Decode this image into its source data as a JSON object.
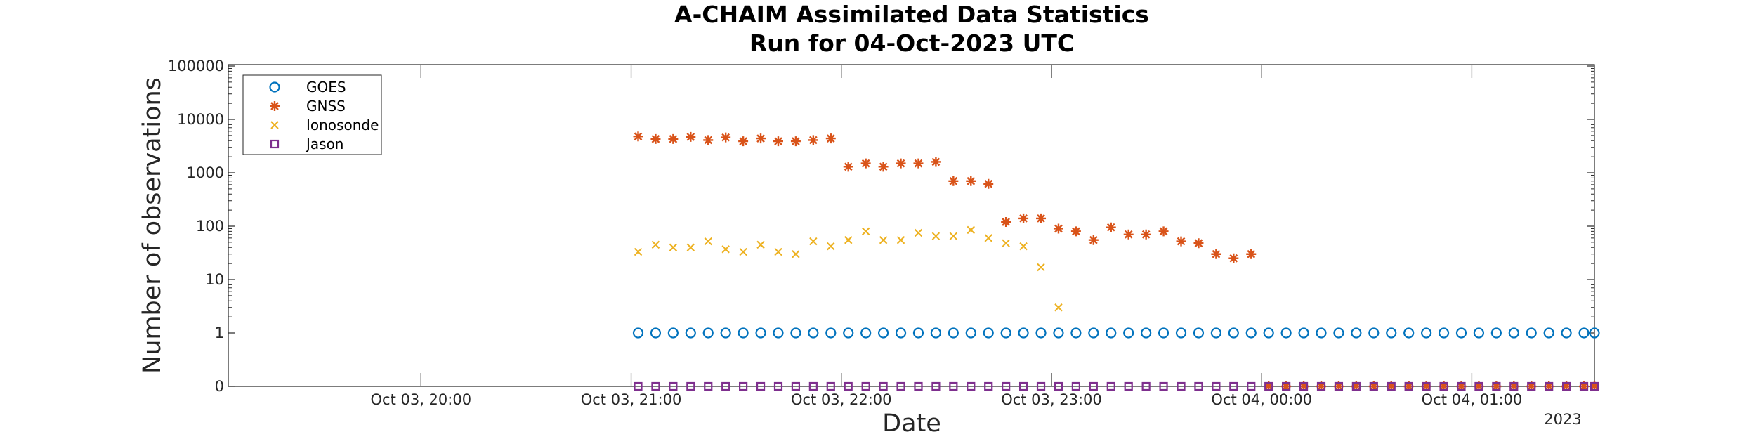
{
  "chart_data": {
    "type": "scatter",
    "title": "A-CHAIM Assimilated Data Statistics",
    "subtitle": "Run for 04-Oct-2023 UTC",
    "xlabel": "Date",
    "ylabel": "Number of observations",
    "x_range_minutes_note": "",
    "x_tick_labels": [
      "Oct 03, 20:00",
      "Oct 03, 21:00",
      "Oct 03, 22:00",
      "Oct 03, 23:00",
      "Oct 04, 00:00",
      "Oct 04, 01:00"
    ],
    "x_year_label": "2023",
    "x_range": [
      "2023-10-03 19:05",
      "2023-10-04 01:35"
    ],
    "y_scale": "log (symlog with 0 at bottom)",
    "y_tick_labels": [
      "0",
      "1",
      "10",
      "100",
      "1000",
      "10000",
      "100000"
    ],
    "ylim": [
      0,
      100000
    ],
    "legend_position": "top-left",
    "grid": false,
    "series": [
      {
        "name": "GOES",
        "marker": "circle",
        "color": "#0072BD",
        "x": [
          "2023-10-03 21:02",
          "2023-10-03 21:07",
          "2023-10-03 21:12",
          "2023-10-03 21:17",
          "2023-10-03 21:22",
          "2023-10-03 21:27",
          "2023-10-03 21:32",
          "2023-10-03 21:37",
          "2023-10-03 21:42",
          "2023-10-03 21:47",
          "2023-10-03 21:52",
          "2023-10-03 21:57",
          "2023-10-03 22:02",
          "2023-10-03 22:07",
          "2023-10-03 22:12",
          "2023-10-03 22:17",
          "2023-10-03 22:22",
          "2023-10-03 22:27",
          "2023-10-03 22:32",
          "2023-10-03 22:37",
          "2023-10-03 22:42",
          "2023-10-03 22:47",
          "2023-10-03 22:52",
          "2023-10-03 22:57",
          "2023-10-03 23:02",
          "2023-10-03 23:07",
          "2023-10-03 23:12",
          "2023-10-03 23:17",
          "2023-10-03 23:22",
          "2023-10-03 23:27",
          "2023-10-03 23:32",
          "2023-10-03 23:37",
          "2023-10-03 23:42",
          "2023-10-03 23:47",
          "2023-10-03 23:52",
          "2023-10-03 23:57",
          "2023-10-04 00:02",
          "2023-10-04 00:07",
          "2023-10-04 00:12",
          "2023-10-04 00:17",
          "2023-10-04 00:22",
          "2023-10-04 00:27",
          "2023-10-04 00:32",
          "2023-10-04 00:37",
          "2023-10-04 00:42",
          "2023-10-04 00:47",
          "2023-10-04 00:52",
          "2023-10-04 00:57",
          "2023-10-04 01:02",
          "2023-10-04 01:07",
          "2023-10-04 01:12",
          "2023-10-04 01:17",
          "2023-10-04 01:22",
          "2023-10-04 01:27",
          "2023-10-04 01:32",
          "2023-10-04 01:35"
        ],
        "values": [
          1,
          1,
          1,
          1,
          1,
          1,
          1,
          1,
          1,
          1,
          1,
          1,
          1,
          1,
          1,
          1,
          1,
          1,
          1,
          1,
          1,
          1,
          1,
          1,
          1,
          1,
          1,
          1,
          1,
          1,
          1,
          1,
          1,
          1,
          1,
          1,
          1,
          1,
          1,
          1,
          1,
          1,
          1,
          1,
          1,
          1,
          1,
          1,
          1,
          1,
          1,
          1,
          1,
          1,
          1,
          1
        ]
      },
      {
        "name": "GNSS",
        "marker": "asterisk",
        "color": "#D95319",
        "x": [
          "2023-10-03 21:02",
          "2023-10-03 21:07",
          "2023-10-03 21:12",
          "2023-10-03 21:17",
          "2023-10-03 21:22",
          "2023-10-03 21:27",
          "2023-10-03 21:32",
          "2023-10-03 21:37",
          "2023-10-03 21:42",
          "2023-10-03 21:47",
          "2023-10-03 21:52",
          "2023-10-03 21:57",
          "2023-10-03 22:02",
          "2023-10-03 22:07",
          "2023-10-03 22:12",
          "2023-10-03 22:17",
          "2023-10-03 22:22",
          "2023-10-03 22:27",
          "2023-10-03 22:32",
          "2023-10-03 22:37",
          "2023-10-03 22:42",
          "2023-10-03 22:47",
          "2023-10-03 22:52",
          "2023-10-03 22:57",
          "2023-10-03 23:02",
          "2023-10-03 23:07",
          "2023-10-03 23:12",
          "2023-10-03 23:17",
          "2023-10-03 23:22",
          "2023-10-03 23:27",
          "2023-10-03 23:32",
          "2023-10-03 23:37",
          "2023-10-03 23:42",
          "2023-10-03 23:47",
          "2023-10-03 23:52",
          "2023-10-03 23:57",
          "2023-10-04 00:02",
          "2023-10-04 00:07",
          "2023-10-04 00:12",
          "2023-10-04 00:17",
          "2023-10-04 00:22",
          "2023-10-04 00:27",
          "2023-10-04 00:32",
          "2023-10-04 00:37",
          "2023-10-04 00:42",
          "2023-10-04 00:47",
          "2023-10-04 00:52",
          "2023-10-04 00:57",
          "2023-10-04 01:02",
          "2023-10-04 01:07",
          "2023-10-04 01:12",
          "2023-10-04 01:17",
          "2023-10-04 01:22",
          "2023-10-04 01:27",
          "2023-10-04 01:32",
          "2023-10-04 01:35"
        ],
        "values": [
          4800,
          4300,
          4300,
          4700,
          4100,
          4600,
          3900,
          4400,
          3900,
          3900,
          4100,
          4400,
          1300,
          1500,
          1300,
          1500,
          1500,
          1600,
          700,
          700,
          620,
          120,
          140,
          140,
          90,
          80,
          55,
          95,
          70,
          70,
          80,
          52,
          48,
          30,
          25,
          30,
          0,
          0,
          0,
          0,
          0,
          0,
          0,
          0,
          0,
          0,
          0,
          0,
          0,
          0,
          0,
          0,
          0,
          0,
          0,
          0
        ]
      },
      {
        "name": "Ionosonde",
        "marker": "x",
        "color": "#EDB120",
        "x": [
          "2023-10-03 21:02",
          "2023-10-03 21:07",
          "2023-10-03 21:12",
          "2023-10-03 21:17",
          "2023-10-03 21:22",
          "2023-10-03 21:27",
          "2023-10-03 21:32",
          "2023-10-03 21:37",
          "2023-10-03 21:42",
          "2023-10-03 21:47",
          "2023-10-03 21:52",
          "2023-10-03 21:57",
          "2023-10-03 22:02",
          "2023-10-03 22:07",
          "2023-10-03 22:12",
          "2023-10-03 22:17",
          "2023-10-03 22:22",
          "2023-10-03 22:27",
          "2023-10-03 22:32",
          "2023-10-03 22:37",
          "2023-10-03 22:42",
          "2023-10-03 22:47",
          "2023-10-03 22:52",
          "2023-10-03 22:57",
          "2023-10-03 23:02"
        ],
        "values": [
          33,
          45,
          40,
          40,
          52,
          37,
          33,
          45,
          33,
          30,
          52,
          42,
          55,
          80,
          55,
          55,
          75,
          65,
          65,
          85,
          60,
          48,
          42,
          17,
          3
        ]
      },
      {
        "name": "Jason",
        "marker": "square",
        "color": "#7E2F8E",
        "x": [
          "2023-10-03 21:02",
          "2023-10-03 21:07",
          "2023-10-03 21:12",
          "2023-10-03 21:17",
          "2023-10-03 21:22",
          "2023-10-03 21:27",
          "2023-10-03 21:32",
          "2023-10-03 21:37",
          "2023-10-03 21:42",
          "2023-10-03 21:47",
          "2023-10-03 21:52",
          "2023-10-03 21:57",
          "2023-10-03 22:02",
          "2023-10-03 22:07",
          "2023-10-03 22:12",
          "2023-10-03 22:17",
          "2023-10-03 22:22",
          "2023-10-03 22:27",
          "2023-10-03 22:32",
          "2023-10-03 22:37",
          "2023-10-03 22:42",
          "2023-10-03 22:47",
          "2023-10-03 22:52",
          "2023-10-03 22:57",
          "2023-10-03 23:02",
          "2023-10-03 23:07",
          "2023-10-03 23:12",
          "2023-10-03 23:17",
          "2023-10-03 23:22",
          "2023-10-03 23:27",
          "2023-10-03 23:32",
          "2023-10-03 23:37",
          "2023-10-03 23:42",
          "2023-10-03 23:47",
          "2023-10-03 23:52",
          "2023-10-03 23:57",
          "2023-10-04 00:02",
          "2023-10-04 00:07",
          "2023-10-04 00:12",
          "2023-10-04 00:17",
          "2023-10-04 00:22",
          "2023-10-04 00:27",
          "2023-10-04 00:32",
          "2023-10-04 00:37",
          "2023-10-04 00:42",
          "2023-10-04 00:47",
          "2023-10-04 00:52",
          "2023-10-04 00:57",
          "2023-10-04 01:02",
          "2023-10-04 01:07",
          "2023-10-04 01:12",
          "2023-10-04 01:17",
          "2023-10-04 01:22",
          "2023-10-04 01:27",
          "2023-10-04 01:32",
          "2023-10-04 01:35"
        ],
        "values": [
          0,
          0,
          0,
          0,
          0,
          0,
          0,
          0,
          0,
          0,
          0,
          0,
          0,
          0,
          0,
          0,
          0,
          0,
          0,
          0,
          0,
          0,
          0,
          0,
          0,
          0,
          0,
          0,
          0,
          0,
          0,
          0,
          0,
          0,
          0,
          0,
          0,
          0,
          0,
          0,
          0,
          0,
          0,
          0,
          0,
          0,
          0,
          0,
          0,
          0,
          0,
          0,
          0,
          0,
          0,
          0
        ]
      }
    ]
  }
}
